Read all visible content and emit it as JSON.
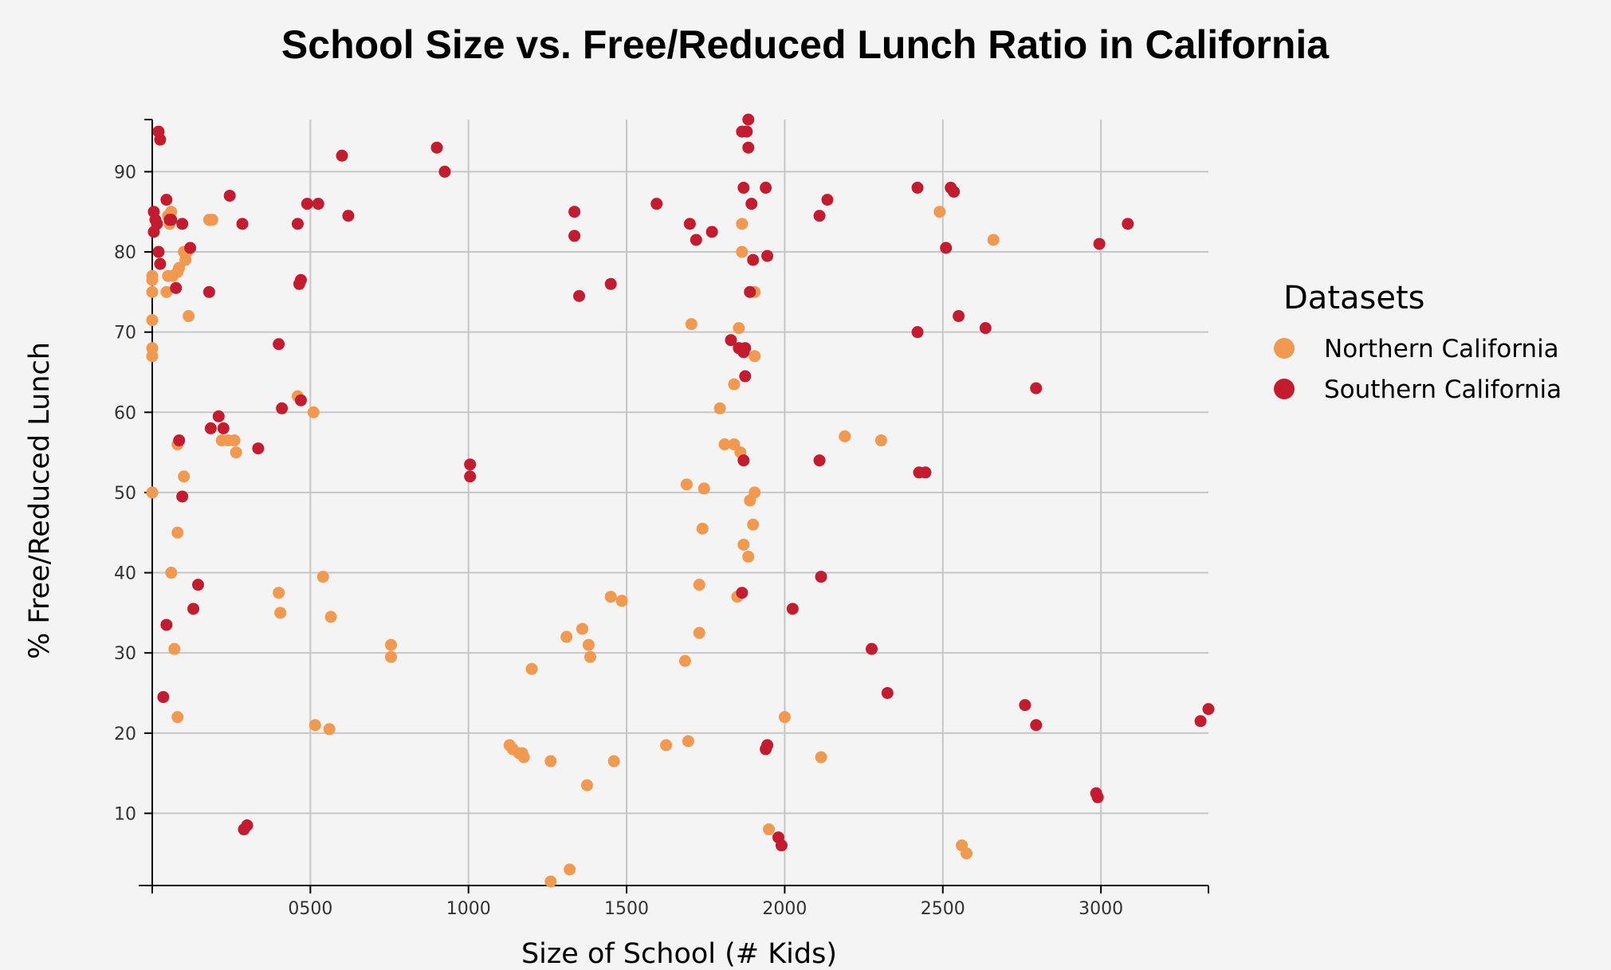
{
  "chart_data": {
    "type": "scatter",
    "title": "School Size vs. Free/Reduced Lunch Ratio in California",
    "xlabel": "Size of School (# Kids)",
    "ylabel": "% Free/Reduced Lunch",
    "xlim": [
      0,
      3340
    ],
    "ylim": [
      1,
      96.5
    ],
    "xticks": [
      0,
      500,
      1000,
      1500,
      2000,
      2500,
      3000
    ],
    "xtick_labels": [
      "",
      "0500",
      "1000",
      "1500",
      "2000",
      "2500",
      "3000"
    ],
    "yticks": [
      10,
      20,
      30,
      40,
      50,
      60,
      70,
      80,
      90
    ],
    "ytick_labels": [
      "10",
      "20",
      "30",
      "40",
      "50",
      "60",
      "70",
      "80",
      "90"
    ],
    "grid": true,
    "legend_title": "Datasets",
    "legend_position": "right",
    "series": [
      {
        "name": "Northern California",
        "color": "#f0994f",
        "points": [
          [
            0,
            77
          ],
          [
            0,
            76.5
          ],
          [
            0,
            75
          ],
          [
            0,
            71.5
          ],
          [
            0,
            68
          ],
          [
            0,
            67
          ],
          [
            0,
            50
          ],
          [
            50,
            84.5
          ],
          [
            55,
            83.5
          ],
          [
            60,
            85
          ],
          [
            50,
            77
          ],
          [
            45,
            75
          ],
          [
            65,
            77
          ],
          [
            80,
            77.5
          ],
          [
            85,
            78
          ],
          [
            100,
            80
          ],
          [
            105,
            79
          ],
          [
            110,
            80
          ],
          [
            115,
            72
          ],
          [
            100,
            52
          ],
          [
            80,
            56
          ],
          [
            80,
            45
          ],
          [
            60,
            40
          ],
          [
            70,
            30.5
          ],
          [
            80,
            22
          ],
          [
            180,
            84
          ],
          [
            190,
            84
          ],
          [
            220,
            56.5
          ],
          [
            240,
            56.5
          ],
          [
            260,
            56.5
          ],
          [
            265,
            55
          ],
          [
            400,
            37.5
          ],
          [
            405,
            35
          ],
          [
            460,
            62
          ],
          [
            510,
            60
          ],
          [
            515,
            21
          ],
          [
            540,
            39.5
          ],
          [
            560,
            20.5
          ],
          [
            565,
            34.5
          ],
          [
            755,
            31
          ],
          [
            755,
            29.5
          ],
          [
            1130,
            18.5
          ],
          [
            1140,
            18
          ],
          [
            1160,
            17.5
          ],
          [
            1170,
            17.5
          ],
          [
            1175,
            17
          ],
          [
            1200,
            28
          ],
          [
            1260,
            16.5
          ],
          [
            1260,
            1.5
          ],
          [
            1310,
            32
          ],
          [
            1320,
            3
          ],
          [
            1360,
            33
          ],
          [
            1375,
            13.5
          ],
          [
            1380,
            31
          ],
          [
            1385,
            29.5
          ],
          [
            1450,
            37
          ],
          [
            1460,
            16.5
          ],
          [
            1485,
            36.5
          ],
          [
            1625,
            18.5
          ],
          [
            1685,
            29
          ],
          [
            1690,
            51
          ],
          [
            1695,
            19
          ],
          [
            1705,
            71
          ],
          [
            1730,
            38.5
          ],
          [
            1730,
            32.5
          ],
          [
            1740,
            45.5
          ],
          [
            1745,
            50.5
          ],
          [
            1795,
            60.5
          ],
          [
            1810,
            56
          ],
          [
            1840,
            56
          ],
          [
            1840,
            63.5
          ],
          [
            1850,
            37
          ],
          [
            1855,
            70.5
          ],
          [
            1860,
            55
          ],
          [
            1865,
            80
          ],
          [
            1865,
            83.5
          ],
          [
            1870,
            43.5
          ],
          [
            1885,
            42
          ],
          [
            1890,
            49
          ],
          [
            1900,
            46
          ],
          [
            1905,
            75
          ],
          [
            1905,
            67
          ],
          [
            1905,
            50
          ],
          [
            1950,
            8
          ],
          [
            2000,
            22
          ],
          [
            2115,
            17
          ],
          [
            2190,
            57
          ],
          [
            2305,
            56.5
          ],
          [
            2490,
            85
          ],
          [
            2560,
            6
          ],
          [
            2575,
            5
          ],
          [
            2660,
            81.5
          ]
        ]
      },
      {
        "name": "Southern California",
        "color": "#c51b2f",
        "points": [
          [
            20,
            95
          ],
          [
            25,
            94
          ],
          [
            5,
            85
          ],
          [
            10,
            84
          ],
          [
            15,
            83.5
          ],
          [
            5,
            82.5
          ],
          [
            20,
            80
          ],
          [
            25,
            78.5
          ],
          [
            45,
            86.5
          ],
          [
            55,
            84
          ],
          [
            60,
            84
          ],
          [
            75,
            75.5
          ],
          [
            85,
            56.5
          ],
          [
            95,
            83.5
          ],
          [
            120,
            80.5
          ],
          [
            95,
            49.5
          ],
          [
            145,
            38.5
          ],
          [
            130,
            35.5
          ],
          [
            45,
            33.5
          ],
          [
            35,
            24.5
          ],
          [
            180,
            75
          ],
          [
            185,
            58
          ],
          [
            210,
            59.5
          ],
          [
            225,
            58
          ],
          [
            245,
            87
          ],
          [
            285,
            83.5
          ],
          [
            335,
            55.5
          ],
          [
            400,
            68.5
          ],
          [
            410,
            60.5
          ],
          [
            465,
            76
          ],
          [
            470,
            76.5
          ],
          [
            460,
            83.5
          ],
          [
            470,
            61.5
          ],
          [
            490,
            86
          ],
          [
            525,
            86
          ],
          [
            600,
            92
          ],
          [
            620,
            84.5
          ],
          [
            290,
            8
          ],
          [
            300,
            8.5
          ],
          [
            900,
            93
          ],
          [
            925,
            90
          ],
          [
            1005,
            53.5
          ],
          [
            1005,
            52
          ],
          [
            1335,
            85
          ],
          [
            1335,
            82
          ],
          [
            1350,
            74.5
          ],
          [
            1450,
            76
          ],
          [
            1595,
            86
          ],
          [
            1700,
            83.5
          ],
          [
            1720,
            81.5
          ],
          [
            1770,
            82.5
          ],
          [
            1830,
            69
          ],
          [
            1855,
            68
          ],
          [
            1865,
            95
          ],
          [
            1870,
            88
          ],
          [
            1870,
            67.5
          ],
          [
            1875,
            68
          ],
          [
            1875,
            64.5
          ],
          [
            1880,
            95
          ],
          [
            1885,
            96.5
          ],
          [
            1885,
            93
          ],
          [
            1890,
            75
          ],
          [
            1895,
            86
          ],
          [
            1900,
            79
          ],
          [
            1870,
            54
          ],
          [
            1865,
            37.5
          ],
          [
            1940,
            88
          ],
          [
            1945,
            79.5
          ],
          [
            1945,
            18.5
          ],
          [
            1940,
            18
          ],
          [
            1980,
            7
          ],
          [
            1990,
            6
          ],
          [
            2025,
            35.5
          ],
          [
            2110,
            84.5
          ],
          [
            2110,
            54
          ],
          [
            2115,
            39.5
          ],
          [
            2135,
            86.5
          ],
          [
            2275,
            30.5
          ],
          [
            2325,
            25
          ],
          [
            2420,
            88
          ],
          [
            2420,
            70
          ],
          [
            2425,
            52.5
          ],
          [
            2445,
            52.5
          ],
          [
            2510,
            80.5
          ],
          [
            2525,
            88
          ],
          [
            2535,
            87.5
          ],
          [
            2550,
            72
          ],
          [
            2635,
            70.5
          ],
          [
            2760,
            23.5
          ],
          [
            2795,
            63
          ],
          [
            2795,
            21
          ],
          [
            2985,
            12.5
          ],
          [
            2990,
            12
          ],
          [
            2995,
            81
          ],
          [
            3085,
            83.5
          ],
          [
            3315,
            21.5
          ],
          [
            3340,
            23
          ]
        ]
      }
    ]
  }
}
